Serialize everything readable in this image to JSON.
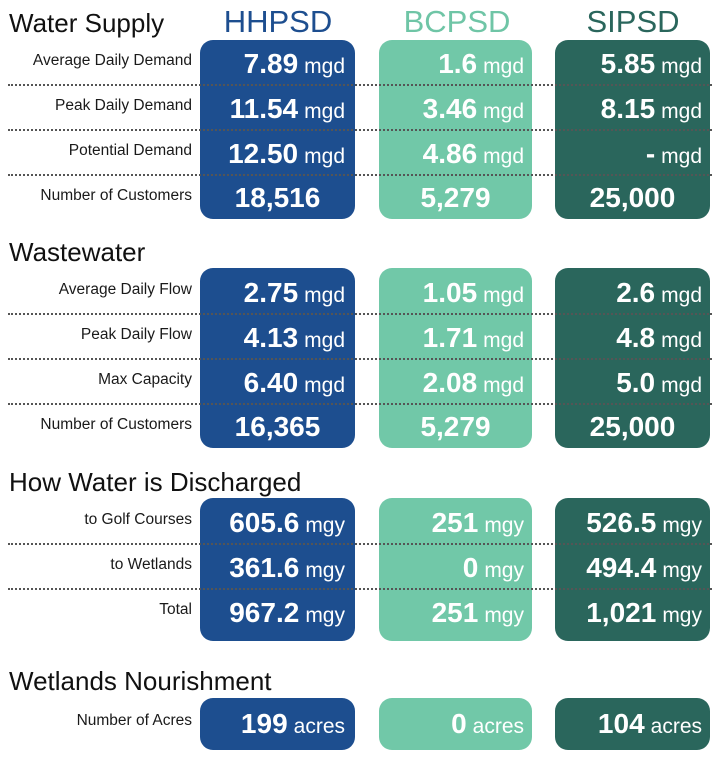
{
  "columns": [
    "HHPSD",
    "BCPSD",
    "SIPSD"
  ],
  "colors": {
    "hhpsd": "#1d4e8f",
    "bcpsd": "#71c8a8",
    "sipsd": "#2a665c"
  },
  "water_supply": {
    "title": "Water Supply",
    "rows": [
      {
        "label": "Average Daily Demand",
        "values": [
          {
            "num": "7.89",
            "unit": "mgd"
          },
          {
            "num": "1.6",
            "unit": "mgd"
          },
          {
            "num": "5.85",
            "unit": "mgd"
          }
        ]
      },
      {
        "label": "Peak Daily Demand",
        "values": [
          {
            "num": "11.54",
            "unit": "mgd"
          },
          {
            "num": "3.46",
            "unit": "mgd"
          },
          {
            "num": "8.15",
            "unit": "mgd"
          }
        ]
      },
      {
        "label": "Potential Demand",
        "values": [
          {
            "num": "12.50",
            "unit": "mgd"
          },
          {
            "num": "4.86",
            "unit": "mgd"
          },
          {
            "num": "-",
            "unit": "mgd"
          }
        ]
      },
      {
        "label": "Number of Customers",
        "values": [
          {
            "num": "18,516"
          },
          {
            "num": "5,279"
          },
          {
            "num": "25,000"
          }
        ]
      }
    ]
  },
  "wastewater": {
    "title": "Wastewater",
    "rows": [
      {
        "label": "Average Daily Flow",
        "values": [
          {
            "num": "2.75",
            "unit": "mgd"
          },
          {
            "num": "1.05",
            "unit": "mgd"
          },
          {
            "num": "2.6",
            "unit": "mgd"
          }
        ]
      },
      {
        "label": "Peak Daily Flow",
        "values": [
          {
            "num": "4.13",
            "unit": "mgd"
          },
          {
            "num": "1.71",
            "unit": "mgd"
          },
          {
            "num": "4.8",
            "unit": "mgd"
          }
        ]
      },
      {
        "label": "Max Capacity",
        "values": [
          {
            "num": "6.40",
            "unit": "mgd"
          },
          {
            "num": "2.08",
            "unit": "mgd"
          },
          {
            "num": "5.0",
            "unit": "mgd"
          }
        ]
      },
      {
        "label": "Number of Customers",
        "values": [
          {
            "num": "16,365"
          },
          {
            "num": "5,279"
          },
          {
            "num": "25,000"
          }
        ]
      }
    ]
  },
  "discharge": {
    "title": "How Water is Discharged",
    "rows": [
      {
        "label": "to Golf Courses",
        "values": [
          {
            "num": "605.6",
            "unit": "mgy"
          },
          {
            "num": "251",
            "unit": "mgy"
          },
          {
            "num": "526.5",
            "unit": "mgy"
          }
        ]
      },
      {
        "label": "to Wetlands",
        "values": [
          {
            "num": "361.6",
            "unit": "mgy"
          },
          {
            "num": "0",
            "unit": "mgy"
          },
          {
            "num": "494.4",
            "unit": "mgy"
          }
        ]
      },
      {
        "label": "Total",
        "values": [
          {
            "num": "967.2",
            "unit": "mgy"
          },
          {
            "num": "251",
            "unit": "mgy"
          },
          {
            "num": "1,021",
            "unit": "mgy"
          }
        ]
      }
    ]
  },
  "wetlands": {
    "title": "Wetlands Nourishment",
    "rows": [
      {
        "label": "Number of Acres",
        "values": [
          {
            "num": "199",
            "unit": "acres"
          },
          {
            "num": "0",
            "unit": "acres"
          },
          {
            "num": "104",
            "unit": "acres"
          }
        ]
      }
    ]
  }
}
